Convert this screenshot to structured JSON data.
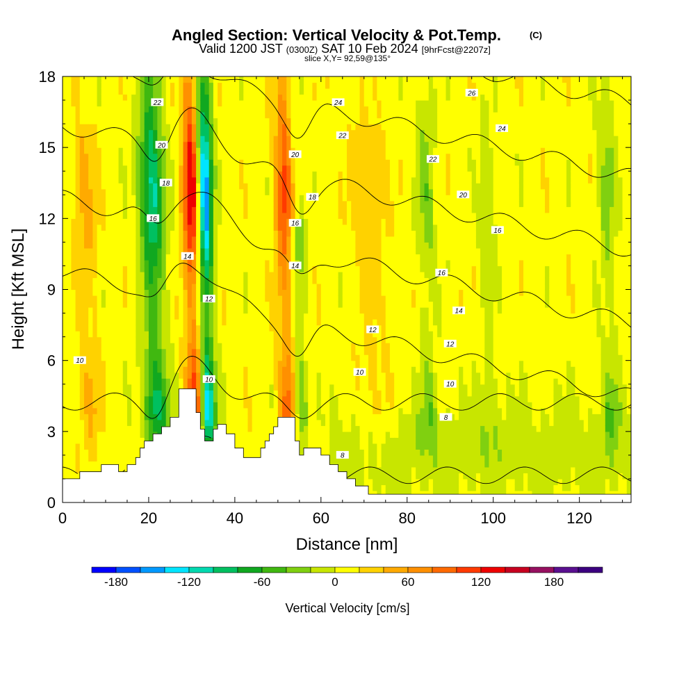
{
  "header": {
    "title": "Angled Section: Vertical Velocity & Pot.Temp.",
    "title_unit": "(C)",
    "valid_prefix": "Valid 1200 JST",
    "valid_z": "(0300Z)",
    "valid_date": "SAT 10 Feb 2024",
    "valid_fcst": "[9hrFcst@2207z]",
    "slice": "slice X,Y= 92,59@135°"
  },
  "chart_data": {
    "type": "heatmap",
    "xlabel": "Distance [nm]",
    "ylabel": "Height [Kft MSL]",
    "xlim": [
      0,
      132
    ],
    "ylim": [
      0,
      18
    ],
    "x_ticks": [
      "0",
      "20",
      "40",
      "60",
      "80",
      "100",
      "120"
    ],
    "y_ticks": [
      "0",
      "3",
      "6",
      "9",
      "12",
      "15",
      "18"
    ],
    "field": "Vertical Velocity [cm/s]",
    "colorbar": {
      "title": "Vertical Velocity [cm/s]",
      "labels": [
        "-180",
        "-120",
        "-60",
        "0",
        "60",
        "120",
        "180"
      ],
      "bounds": [
        -200,
        220
      ],
      "step": 20,
      "colors": [
        "#0000ff",
        "#0050ff",
        "#0099ff",
        "#00e5ff",
        "#00d9b0",
        "#00c060",
        "#10a820",
        "#40b810",
        "#80d010",
        "#c8e600",
        "#ffff00",
        "#ffd200",
        "#ffaa00",
        "#ff9000",
        "#ff6a00",
        "#ff3a00",
        "#ee0000",
        "#c80020",
        "#961060",
        "#5a1090",
        "#3c0080"
      ]
    },
    "features": [
      {
        "kind": "updraft",
        "x": 30.5,
        "peak": 140,
        "z_top": 18,
        "width": 2.0
      },
      {
        "kind": "downdraft",
        "x": 33.5,
        "peak": -180,
        "z_top": 18,
        "width": 1.8
      },
      {
        "kind": "updraft",
        "x": 52,
        "peak": 100,
        "z_top": 18,
        "width": 2.0
      },
      {
        "kind": "downdraft",
        "x": 55,
        "peak": -60,
        "z_top": 12,
        "width": 1.8
      },
      {
        "kind": "downdraft",
        "x": 21.5,
        "peak": -120,
        "z_top": 18,
        "width": 2.8
      },
      {
        "kind": "updraft",
        "x": 6,
        "peak": 40,
        "z_top": 16,
        "width": 2.5
      },
      {
        "kind": "updraft",
        "x": 72,
        "peak": 30,
        "z_top": 16,
        "width": 4.0
      },
      {
        "kind": "downdraft",
        "x": 85,
        "peak": -40,
        "z_top": 18,
        "width": 2.0
      },
      {
        "kind": "downdraft",
        "x": 99,
        "peak": -30,
        "z_top": 17,
        "width": 1.8
      },
      {
        "kind": "downdraft",
        "x": 127,
        "peak": -40,
        "z_top": 18,
        "width": 2.0
      }
    ],
    "terrain": [
      [
        0,
        1
      ],
      [
        4,
        1
      ],
      [
        4,
        1.3
      ],
      [
        9,
        1.3
      ],
      [
        9,
        1.6
      ],
      [
        13,
        1.6
      ],
      [
        13,
        1.3
      ],
      [
        15,
        1.3
      ],
      [
        15,
        1.6
      ],
      [
        17,
        1.6
      ],
      [
        17,
        1.9
      ],
      [
        18,
        1.9
      ],
      [
        18,
        2.3
      ],
      [
        19,
        2.3
      ],
      [
        19,
        2.6
      ],
      [
        21,
        2.6
      ],
      [
        21,
        2.9
      ],
      [
        23,
        2.9
      ],
      [
        23,
        3.2
      ],
      [
        25,
        3.2
      ],
      [
        25,
        3.6
      ],
      [
        27,
        3.6
      ],
      [
        27,
        4.8
      ],
      [
        31,
        4.8
      ],
      [
        31,
        3.8
      ],
      [
        32,
        3.8
      ],
      [
        32,
        3.1
      ],
      [
        33,
        3.1
      ],
      [
        33,
        2.6
      ],
      [
        35,
        2.6
      ],
      [
        35,
        3.1
      ],
      [
        36,
        3.1
      ],
      [
        36,
        3.3
      ],
      [
        38,
        3.3
      ],
      [
        38,
        2.9
      ],
      [
        40,
        2.9
      ],
      [
        40,
        2.3
      ],
      [
        42,
        2.3
      ],
      [
        42,
        1.9
      ],
      [
        46,
        1.9
      ],
      [
        46,
        2.3
      ],
      [
        47,
        2.3
      ],
      [
        47,
        2.6
      ],
      [
        48,
        2.6
      ],
      [
        48,
        2.9
      ],
      [
        49,
        2.9
      ],
      [
        49,
        3.2
      ],
      [
        50,
        3.2
      ],
      [
        50,
        3.6
      ],
      [
        54,
        3.6
      ],
      [
        54,
        2.6
      ],
      [
        55,
        2.6
      ],
      [
        55,
        2.0
      ],
      [
        56,
        2.0
      ],
      [
        56,
        2.3
      ],
      [
        60,
        2.3
      ],
      [
        60,
        2.0
      ],
      [
        62,
        2.0
      ],
      [
        62,
        1.6
      ],
      [
        64,
        1.6
      ],
      [
        64,
        1.3
      ],
      [
        66,
        1.3
      ],
      [
        66,
        1.0
      ],
      [
        68,
        1.0
      ],
      [
        68,
        0.7
      ],
      [
        71,
        0.7
      ],
      [
        71,
        0.35
      ],
      [
        132,
        0.35
      ]
    ],
    "theta_contours": [
      {
        "theta": 8,
        "labels": [
          [
            89,
            3.6
          ],
          [
            65,
            2.0
          ]
        ]
      },
      {
        "theta": 10,
        "labels": [
          [
            90,
            5.0
          ],
          [
            69,
            5.5
          ],
          [
            34,
            5.2
          ],
          [
            4,
            6.0
          ]
        ]
      },
      {
        "theta": 12,
        "labels": [
          [
            90,
            6.7
          ],
          [
            72,
            7.3
          ],
          [
            34,
            8.6
          ]
        ]
      },
      {
        "theta": 14,
        "labels": [
          [
            92,
            8.1
          ],
          [
            54,
            10.0
          ],
          [
            29,
            10.4
          ]
        ]
      },
      {
        "theta": 16,
        "labels": [
          [
            88,
            9.7
          ],
          [
            101,
            11.5
          ],
          [
            54,
            11.8
          ],
          [
            21,
            12.0
          ]
        ]
      },
      {
        "theta": 18,
        "labels": [
          [
            58,
            12.9
          ],
          [
            24,
            13.5
          ]
        ]
      },
      {
        "theta": 20,
        "labels": [
          [
            93,
            13.0
          ],
          [
            54,
            14.7
          ],
          [
            23,
            15.1
          ]
        ]
      },
      {
        "theta": 22,
        "labels": [
          [
            65,
            15.5
          ],
          [
            86,
            14.5
          ],
          [
            22,
            16.9
          ]
        ]
      },
      {
        "theta": 24,
        "labels": [
          [
            64,
            16.9
          ],
          [
            102,
            15.8
          ]
        ]
      },
      {
        "theta": 26,
        "labels": [
          [
            95,
            17.3
          ]
        ]
      }
    ]
  }
}
